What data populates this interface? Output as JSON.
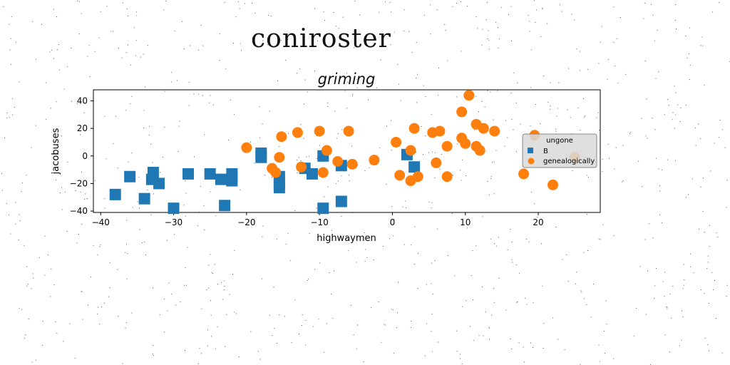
{
  "figure": {
    "title": "coniroster"
  },
  "chart_data": {
    "type": "scatter",
    "title": "griming",
    "xlabel": "highwaymen",
    "ylabel": "jacobuses",
    "xlim": [
      -41,
      28.5
    ],
    "ylim": [
      -41,
      48
    ],
    "xticks": [
      -40,
      -30,
      -20,
      -10,
      0,
      10,
      20
    ],
    "xtick_labels": [
      "−40",
      "−30",
      "−20",
      "−10",
      "0",
      "10",
      "20"
    ],
    "yticks": [
      -40,
      -20,
      0,
      20,
      40
    ],
    "ytick_labels": [
      "−40",
      "−20",
      "0",
      "20",
      "40"
    ],
    "grid": false,
    "legend": {
      "title": "ungone",
      "placement": "right"
    },
    "series": [
      {
        "name": "B",
        "marker": "square",
        "color": "#1f77b4",
        "points": [
          [
            -38.0,
            -28
          ],
          [
            -36.0,
            -15
          ],
          [
            -34.0,
            -31
          ],
          [
            -33.0,
            -17
          ],
          [
            -32.8,
            -12
          ],
          [
            -32.0,
            -20
          ],
          [
            -30.0,
            -38
          ],
          [
            -28.0,
            -13
          ],
          [
            -25.0,
            -13
          ],
          [
            -23.5,
            -17
          ],
          [
            -23.0,
            -36
          ],
          [
            -22.0,
            -13
          ],
          [
            -22.0,
            -18
          ],
          [
            -18.0,
            2
          ],
          [
            -18.0,
            -1
          ],
          [
            -15.5,
            -15
          ],
          [
            -15.5,
            -20
          ],
          [
            -15.5,
            -23
          ],
          [
            -12.0,
            -9
          ],
          [
            -11.0,
            -13
          ],
          [
            -9.5,
            -38
          ],
          [
            -9.5,
            0
          ],
          [
            -7.0,
            -33
          ],
          [
            -7.0,
            -7
          ],
          [
            2.0,
            1
          ],
          [
            3.0,
            -8
          ]
        ]
      },
      {
        "name": "genealogically",
        "marker": "circle",
        "color": "#ff7f0e",
        "points": [
          [
            -20.0,
            6
          ],
          [
            -16.5,
            -9
          ],
          [
            -16.0,
            -12
          ],
          [
            -15.5,
            -1
          ],
          [
            -15.2,
            14
          ],
          [
            -13.0,
            17
          ],
          [
            -12.5,
            -8
          ],
          [
            -10.0,
            18
          ],
          [
            -9.5,
            -12
          ],
          [
            -9.0,
            4
          ],
          [
            -7.5,
            -4
          ],
          [
            -6.0,
            18
          ],
          [
            -5.5,
            -6
          ],
          [
            -2.5,
            -3
          ],
          [
            0.5,
            10
          ],
          [
            1.0,
            -14
          ],
          [
            2.5,
            4
          ],
          [
            2.5,
            -18
          ],
          [
            3.0,
            20
          ],
          [
            3.5,
            -15
          ],
          [
            5.5,
            17
          ],
          [
            6.0,
            -5
          ],
          [
            6.5,
            18
          ],
          [
            7.5,
            -15
          ],
          [
            7.5,
            7
          ],
          [
            9.5,
            32
          ],
          [
            9.5,
            13
          ],
          [
            10.0,
            9
          ],
          [
            10.5,
            44
          ],
          [
            11.5,
            23
          ],
          [
            11.5,
            7
          ],
          [
            12.0,
            4
          ],
          [
            12.5,
            20
          ],
          [
            14.0,
            18
          ],
          [
            18.0,
            -13
          ],
          [
            19.5,
            15
          ],
          [
            22.0,
            -21
          ],
          [
            25.0,
            -1
          ]
        ]
      }
    ]
  }
}
